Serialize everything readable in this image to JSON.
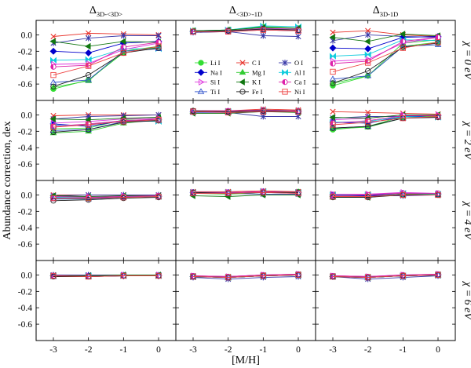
{
  "chart_data": {
    "type": "line",
    "x": [
      -3,
      -2,
      -1,
      0
    ],
    "x_tick_labels": [
      "-3",
      "-2",
      "-1",
      "0"
    ],
    "xlabel": "[M/H]",
    "ylabel": "Abundance correction, dex",
    "ylim": [
      -0.8,
      0.1
    ],
    "y_tick_labels": [
      "0.0",
      "-0.2",
      "-0.4",
      "-0.6"
    ],
    "columns": [
      {
        "title_main": "Δ",
        "title_sub": "3D-<3D>"
      },
      {
        "title_main": "Δ",
        "title_sub": "<3D>-1D"
      },
      {
        "title_main": "Δ",
        "title_sub": "3D-1D"
      }
    ],
    "rows": [
      {
        "label": "χ = 0 eV"
      },
      {
        "label": "χ = 2 eV"
      },
      {
        "label": "χ = 4 eV"
      },
      {
        "label": "χ = 6 eV"
      }
    ],
    "species": [
      {
        "name": "Li I",
        "color": "#33dd33",
        "marker": "circle-filled"
      },
      {
        "name": "C I",
        "color": "#e8322a",
        "marker": "x"
      },
      {
        "name": "O I",
        "color": "#3a3aa8",
        "marker": "star"
      },
      {
        "name": "Na I",
        "color": "#0000cc",
        "marker": "diamond-filled"
      },
      {
        "name": "Mg I",
        "color": "#33cc33",
        "marker": "triangle-up-filled"
      },
      {
        "name": "Al I",
        "color": "#11ccdd",
        "marker": "bowtie"
      },
      {
        "name": "Si I",
        "color": "#dd33dd",
        "marker": "triangle-right-open"
      },
      {
        "name": "K I",
        "color": "#117711",
        "marker": "triangle-left-filled"
      },
      {
        "name": "Ca I",
        "color": "#dd22aa",
        "marker": "half-circle"
      },
      {
        "name": "Ti I",
        "color": "#3355cc",
        "marker": "triangle-up-open"
      },
      {
        "name": "Fe I",
        "color": "#222222",
        "marker": "circle-open"
      },
      {
        "name": "Ni I",
        "color": "#ee4444",
        "marker": "square-open"
      }
    ],
    "series": [
      [
        [
          [
            -0.66,
            -0.55,
            -0.22,
            -0.15
          ],
          [
            -0.02,
            0.02,
            0.01,
            0.0
          ],
          [
            -0.1,
            -0.04,
            -0.01,
            -0.01
          ],
          [
            -0.2,
            -0.22,
            -0.1,
            -0.08
          ],
          [
            -0.64,
            -0.56,
            -0.2,
            -0.14
          ],
          [
            -0.31,
            -0.3,
            -0.17,
            -0.17
          ],
          [
            -0.36,
            -0.35,
            -0.18,
            -0.1
          ],
          [
            -0.08,
            -0.14,
            -0.08,
            -0.09
          ],
          [
            -0.39,
            -0.37,
            -0.15,
            -0.09
          ],
          [
            -0.58,
            -0.55,
            -0.2,
            -0.17
          ],
          [
            -0.63,
            -0.49,
            -0.22,
            -0.16
          ],
          [
            -0.49,
            -0.38,
            -0.22,
            -0.14
          ]
        ],
        [
          [
            -0.17,
            -0.16,
            -0.06,
            -0.03
          ],
          [
            -0.01,
            0.0,
            0.0,
            0.0
          ],
          [
            -0.05,
            -0.02,
            -0.01,
            0.0
          ],
          [
            -0.11,
            -0.14,
            -0.07,
            -0.06
          ],
          [
            -0.22,
            -0.2,
            -0.1,
            -0.06
          ],
          [
            -0.13,
            -0.12,
            -0.07,
            -0.08
          ],
          [
            -0.1,
            -0.08,
            -0.05,
            -0.04
          ],
          [
            -0.05,
            -0.06,
            -0.04,
            -0.03
          ],
          [
            -0.14,
            -0.11,
            -0.07,
            -0.05
          ],
          [
            -0.19,
            -0.18,
            -0.08,
            -0.07
          ],
          [
            -0.21,
            -0.18,
            -0.09,
            -0.07
          ],
          [
            -0.15,
            -0.12,
            -0.08,
            -0.06
          ]
        ],
        [
          [
            -0.04,
            -0.04,
            -0.02,
            -0.01
          ],
          [
            0.0,
            0.0,
            0.0,
            0.0
          ],
          [
            -0.01,
            0.0,
            0.0,
            0.0
          ],
          [
            -0.03,
            -0.04,
            -0.02,
            -0.02
          ],
          [
            -0.05,
            -0.05,
            -0.03,
            -0.02
          ],
          [
            -0.03,
            -0.03,
            -0.02,
            -0.02
          ],
          [
            -0.02,
            -0.02,
            -0.01,
            -0.01
          ],
          [
            -0.01,
            -0.02,
            -0.01,
            -0.01
          ],
          [
            -0.04,
            -0.03,
            -0.02,
            -0.01
          ],
          [
            -0.05,
            -0.05,
            -0.03,
            -0.02
          ],
          [
            -0.07,
            -0.06,
            -0.04,
            -0.03
          ],
          [
            -0.04,
            -0.04,
            -0.03,
            -0.02
          ]
        ],
        [
          [
            -0.01,
            -0.01,
            -0.01,
            -0.01
          ],
          [
            0.0,
            0.0,
            0.0,
            0.0
          ],
          [
            0.0,
            0.0,
            0.0,
            0.0
          ],
          [
            -0.01,
            -0.01,
            -0.01,
            -0.01
          ],
          [
            -0.02,
            -0.02,
            -0.01,
            -0.01
          ],
          [
            -0.01,
            -0.01,
            -0.01,
            -0.01
          ],
          [
            -0.01,
            -0.01,
            0.0,
            0.0
          ],
          [
            -0.01,
            -0.01,
            0.0,
            0.0
          ],
          [
            -0.01,
            -0.02,
            -0.01,
            -0.01
          ],
          [
            -0.02,
            -0.02,
            -0.01,
            -0.01
          ],
          [
            -0.02,
            -0.02,
            -0.01,
            -0.01
          ],
          [
            -0.01,
            -0.02,
            -0.01,
            -0.01
          ]
        ]
      ],
      [
        [
          [
            0.04,
            0.05,
            0.08,
            0.06
          ],
          [
            0.03,
            0.04,
            0.06,
            0.05
          ],
          [
            0.03,
            0.04,
            -0.01,
            -0.02
          ],
          [
            0.04,
            0.05,
            0.07,
            0.06
          ],
          [
            0.05,
            0.06,
            0.1,
            0.08
          ],
          [
            0.05,
            0.06,
            0.11,
            0.1
          ],
          [
            0.04,
            0.05,
            0.08,
            0.07
          ],
          [
            0.05,
            0.06,
            0.09,
            0.08
          ],
          [
            0.04,
            0.05,
            0.07,
            0.06
          ],
          [
            0.04,
            0.05,
            0.06,
            0.05
          ],
          [
            0.04,
            0.05,
            0.07,
            0.06
          ],
          [
            0.04,
            0.04,
            0.06,
            0.05
          ]
        ],
        [
          [
            0.04,
            0.04,
            0.06,
            0.05
          ],
          [
            0.05,
            0.05,
            0.07,
            0.06
          ],
          [
            0.04,
            0.03,
            -0.02,
            -0.02
          ],
          [
            0.04,
            0.04,
            0.05,
            0.05
          ],
          [
            0.05,
            0.04,
            0.06,
            0.05
          ],
          [
            0.04,
            0.04,
            0.05,
            0.04
          ],
          [
            0.04,
            0.04,
            0.05,
            0.04
          ],
          [
            0.02,
            0.02,
            0.04,
            0.03
          ],
          [
            0.05,
            0.05,
            0.06,
            0.05
          ],
          [
            0.03,
            0.03,
            0.04,
            0.04
          ],
          [
            0.05,
            0.04,
            0.05,
            0.04
          ],
          [
            0.04,
            0.03,
            0.04,
            0.04
          ]
        ],
        [
          [
            0.03,
            0.03,
            0.04,
            0.04
          ],
          [
            0.04,
            0.04,
            0.05,
            0.04
          ],
          [
            0.02,
            0.02,
            0.01,
            0.01
          ],
          [
            0.03,
            0.03,
            0.04,
            0.03
          ],
          [
            0.02,
            0.01,
            0.03,
            0.03
          ],
          [
            0.03,
            0.03,
            0.04,
            0.03
          ],
          [
            0.03,
            0.03,
            0.04,
            0.03
          ],
          [
            -0.01,
            -0.02,
            0.0,
            0.0
          ],
          [
            0.03,
            0.03,
            0.04,
            0.03
          ],
          [
            0.02,
            0.02,
            0.03,
            0.02
          ],
          [
            0.03,
            0.02,
            0.03,
            0.03
          ],
          [
            0.02,
            0.02,
            0.03,
            0.02
          ]
        ],
        [
          [
            -0.02,
            -0.03,
            -0.01,
            0.0
          ],
          [
            -0.01,
            -0.02,
            0.0,
            0.01
          ],
          [
            -0.03,
            -0.05,
            -0.03,
            -0.02
          ],
          [
            -0.02,
            -0.03,
            -0.01,
            0.0
          ],
          [
            -0.02,
            -0.03,
            -0.01,
            0.0
          ],
          [
            -0.02,
            -0.03,
            -0.01,
            0.0
          ],
          [
            -0.01,
            -0.02,
            0.0,
            0.01
          ],
          [
            -0.02,
            -0.03,
            -0.01,
            0.0
          ],
          [
            -0.01,
            -0.02,
            0.0,
            0.01
          ],
          [
            -0.02,
            -0.03,
            -0.01,
            0.0
          ],
          [
            -0.02,
            -0.03,
            -0.01,
            0.0
          ],
          [
            -0.02,
            -0.03,
            -0.01,
            0.0
          ]
        ]
      ],
      [
        [
          [
            -0.62,
            -0.5,
            -0.14,
            -0.09
          ],
          [
            0.03,
            0.05,
            0.0,
            -0.02
          ],
          [
            -0.07,
            0.0,
            -0.02,
            -0.03
          ],
          [
            -0.16,
            -0.17,
            -0.03,
            -0.02
          ],
          [
            -0.59,
            -0.5,
            -0.1,
            -0.06
          ],
          [
            -0.26,
            -0.24,
            -0.06,
            -0.07
          ],
          [
            -0.32,
            -0.3,
            -0.1,
            -0.03
          ],
          [
            -0.03,
            -0.08,
            0.01,
            -0.01
          ],
          [
            -0.35,
            -0.32,
            -0.08,
            -0.03
          ],
          [
            -0.54,
            -0.5,
            -0.14,
            -0.12
          ],
          [
            -0.59,
            -0.44,
            -0.15,
            -0.1
          ],
          [
            -0.45,
            -0.34,
            -0.16,
            -0.09
          ]
        ],
        [
          [
            -0.18,
            -0.14,
            -0.02,
            -0.02
          ],
          [
            0.04,
            0.03,
            0.02,
            0.01
          ],
          [
            -0.04,
            -0.02,
            -0.02,
            -0.02
          ],
          [
            -0.09,
            -0.1,
            -0.02,
            -0.01
          ],
          [
            -0.17,
            -0.15,
            -0.04,
            -0.01
          ],
          [
            -0.09,
            -0.08,
            -0.02,
            -0.03
          ],
          [
            -0.06,
            -0.04,
            0.0,
            0.0
          ],
          [
            -0.03,
            -0.04,
            0.0,
            0.0
          ],
          [
            -0.1,
            -0.07,
            -0.01,
            -0.01
          ],
          [
            -0.16,
            -0.14,
            -0.04,
            -0.03
          ],
          [
            -0.16,
            -0.14,
            -0.04,
            -0.03
          ],
          [
            -0.12,
            -0.09,
            -0.04,
            -0.02
          ]
        ],
        [
          [
            -0.01,
            -0.02,
            0.02,
            0.02
          ],
          [
            0.01,
            0.01,
            0.02,
            0.01
          ],
          [
            -0.01,
            -0.01,
            -0.01,
            0.0
          ],
          [
            0.0,
            -0.01,
            0.02,
            0.01
          ],
          [
            -0.03,
            -0.02,
            0.0,
            0.01
          ],
          [
            0.0,
            0.0,
            0.02,
            0.01
          ],
          [
            0.01,
            0.01,
            0.03,
            0.02
          ],
          [
            -0.02,
            -0.03,
            0.01,
            0.0
          ],
          [
            -0.01,
            0.0,
            0.02,
            0.02
          ],
          [
            -0.02,
            -0.02,
            0.0,
            0.0
          ],
          [
            -0.03,
            -0.03,
            0.0,
            0.0
          ],
          [
            -0.02,
            -0.02,
            0.0,
            0.0
          ]
        ],
        [
          [
            -0.02,
            -0.03,
            -0.01,
            0.0
          ],
          [
            -0.01,
            -0.02,
            -0.01,
            0.01
          ],
          [
            -0.02,
            -0.05,
            -0.03,
            -0.01
          ],
          [
            -0.02,
            -0.03,
            -0.01,
            0.0
          ],
          [
            -0.02,
            -0.03,
            -0.01,
            0.0
          ],
          [
            -0.02,
            -0.03,
            -0.01,
            0.0
          ],
          [
            -0.01,
            -0.02,
            0.0,
            0.01
          ],
          [
            -0.02,
            -0.03,
            -0.01,
            0.0
          ],
          [
            -0.01,
            -0.02,
            0.0,
            0.01
          ],
          [
            -0.02,
            -0.03,
            -0.01,
            0.0
          ],
          [
            -0.02,
            -0.03,
            -0.01,
            0.0
          ],
          [
            -0.02,
            -0.03,
            -0.01,
            0.0
          ]
        ]
      ]
    ]
  }
}
